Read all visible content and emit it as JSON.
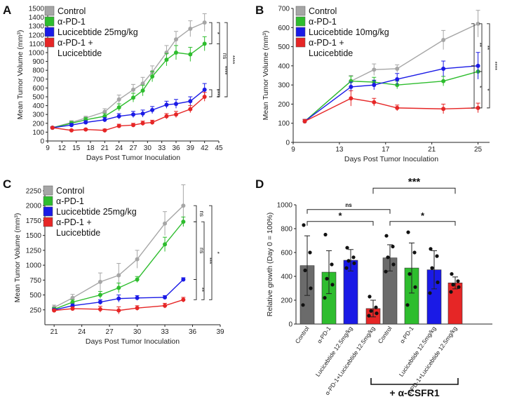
{
  "colors": {
    "control": "#a6a6a6",
    "apd1": "#2ebd2e",
    "luci": "#1a1ae6",
    "combo": "#e62626",
    "control_bar": "#6b6b6b",
    "dot": "#111111"
  },
  "chart_data": [
    {
      "panel": "A",
      "type": "line",
      "xlabel": "Days Post Tumor Inoculation",
      "ylabel": "Mean Tumor Volume (mm³)",
      "xlim": [
        9,
        45
      ],
      "ylim": [
        0,
        1500
      ],
      "xticks": [
        9,
        12,
        15,
        18,
        21,
        24,
        27,
        30,
        33,
        36,
        39,
        42,
        45
      ],
      "yticks": [
        0,
        100,
        200,
        300,
        400,
        500,
        600,
        700,
        800,
        900,
        1000,
        1100,
        1200,
        1300,
        1400,
        1500
      ],
      "legend": [
        "Control",
        "α-PD-1",
        "Lucicebtide 25mg/kg",
        "α-PD-1 +",
        "Lucicebtide"
      ],
      "series": [
        {
          "name": "Control",
          "color_key": "control",
          "x": [
            10,
            14,
            17,
            21,
            24,
            27,
            29,
            31,
            34,
            36,
            39,
            42
          ],
          "values": [
            150,
            210,
            260,
            330,
            470,
            580,
            650,
            780,
            1000,
            1150,
            1270,
            1340
          ],
          "err": [
            10,
            20,
            20,
            35,
            50,
            60,
            70,
            70,
            80,
            90,
            90,
            100
          ]
        },
        {
          "name": "α-PD-1",
          "color_key": "apd1",
          "x": [
            10,
            14,
            17,
            21,
            24,
            27,
            29,
            31,
            34,
            36,
            39,
            42
          ],
          "values": [
            150,
            200,
            240,
            280,
            380,
            490,
            570,
            730,
            920,
            1000,
            980,
            1100
          ],
          "err": [
            10,
            20,
            25,
            30,
            40,
            50,
            60,
            60,
            70,
            80,
            80,
            80
          ]
        },
        {
          "name": "Lucicebtide 25mg/kg",
          "color_key": "luci",
          "x": [
            10,
            14,
            17,
            21,
            24,
            27,
            29,
            31,
            34,
            36,
            39,
            42
          ],
          "values": [
            150,
            180,
            210,
            240,
            280,
            300,
            310,
            350,
            410,
            420,
            450,
            580
          ],
          "err": [
            10,
            20,
            20,
            25,
            30,
            35,
            40,
            40,
            40,
            50,
            50,
            70
          ]
        },
        {
          "name": "α-PD-1 + Lucicebtide",
          "color_key": "combo",
          "x": [
            10,
            14,
            17,
            21,
            24,
            27,
            29,
            31,
            34,
            36,
            39,
            42
          ],
          "values": [
            150,
            120,
            130,
            120,
            170,
            180,
            200,
            210,
            280,
            300,
            360,
            500
          ],
          "err": [
            5,
            10,
            10,
            15,
            20,
            20,
            25,
            25,
            30,
            35,
            40,
            50
          ]
        }
      ],
      "significance": [
        "*",
        "****",
        "****",
        "****",
        "ns"
      ]
    },
    {
      "panel": "B",
      "type": "line",
      "xlabel": "Days Post Tumor Inoculation",
      "ylabel": "Mean Tumor Volume (mm³)",
      "xlim": [
        9,
        26
      ],
      "ylim": [
        0,
        700
      ],
      "xticks": [
        9,
        13,
        17,
        21,
        25
      ],
      "yticks": [
        0,
        100,
        200,
        300,
        400,
        500,
        600,
        700
      ],
      "legend": [
        "Control",
        "α-PD-1",
        "Lucicebtide 10mg/kg",
        "α-PD-1 +",
        "Lucicebtide"
      ],
      "series": [
        {
          "name": "Control",
          "color_key": "control",
          "x": [
            10,
            14,
            16,
            18,
            22,
            25
          ],
          "values": [
            110,
            320,
            380,
            385,
            535,
            620
          ],
          "err": [
            10,
            30,
            30,
            20,
            50,
            70
          ]
        },
        {
          "name": "α-PD-1",
          "color_key": "apd1",
          "x": [
            10,
            14,
            16,
            18,
            22,
            25
          ],
          "values": [
            110,
            320,
            315,
            300,
            320,
            370
          ],
          "err": [
            10,
            25,
            25,
            20,
            25,
            30
          ]
        },
        {
          "name": "Lucicebtide 10mg/kg",
          "color_key": "luci",
          "x": [
            10,
            14,
            16,
            18,
            22,
            25
          ],
          "values": [
            110,
            290,
            300,
            330,
            385,
            400
          ],
          "err": [
            10,
            25,
            25,
            30,
            40,
            70
          ]
        },
        {
          "name": "α-PD-1 + Lucicebtide",
          "color_key": "combo",
          "x": [
            10,
            14,
            16,
            18,
            22,
            25
          ],
          "values": [
            110,
            230,
            210,
            180,
            175,
            180
          ],
          "err": [
            10,
            40,
            20,
            15,
            25,
            25
          ]
        }
      ],
      "significance": [
        "**",
        "**",
        "****",
        "*",
        "*"
      ]
    },
    {
      "panel": "C",
      "type": "line",
      "xlabel": "Days Post Tumor Inoculation",
      "ylabel": "Mean Tumor Volume (mm³)",
      "xlim": [
        20,
        39
      ],
      "ylim": [
        0,
        2250
      ],
      "xticks": [
        21,
        24,
        27,
        30,
        33,
        36,
        39
      ],
      "yticks": [
        250,
        500,
        750,
        1000,
        1250,
        1500,
        1750,
        2000,
        2250
      ],
      "legend": [
        "Control",
        "α-PD-1",
        "Lucicebtide 25mg/kg",
        "α-PD-1 +",
        "Lucicebtide"
      ],
      "series": [
        {
          "name": "Control",
          "color_key": "control",
          "x": [
            21,
            23,
            26,
            28,
            30,
            33,
            35
          ],
          "values": [
            290,
            450,
            720,
            830,
            1100,
            1700,
            2000
          ],
          "err": [
            40,
            60,
            150,
            200,
            150,
            200,
            350
          ]
        },
        {
          "name": "α-PD-1",
          "color_key": "apd1",
          "x": [
            21,
            23,
            26,
            28,
            30,
            33,
            35
          ],
          "values": [
            260,
            380,
            500,
            620,
            760,
            1350,
            1730
          ],
          "err": [
            30,
            40,
            60,
            80,
            50,
            120,
            80
          ]
        },
        {
          "name": "Lucicebtide 25mg/kg",
          "color_key": "luci",
          "x": [
            21,
            23,
            26,
            28,
            30,
            33,
            35
          ],
          "values": [
            250,
            320,
            380,
            440,
            450,
            460,
            760
          ],
          "err": [
            20,
            30,
            40,
            60,
            40,
            30,
            30
          ]
        },
        {
          "name": "α-PD-1 + Lucicebtide",
          "color_key": "combo",
          "x": [
            21,
            23,
            26,
            28,
            30,
            33,
            35
          ],
          "values": [
            240,
            270,
            260,
            240,
            280,
            320,
            420
          ],
          "err": [
            20,
            30,
            50,
            60,
            40,
            40,
            40
          ]
        }
      ],
      "significance": [
        "ns",
        "ns",
        "**",
        "***",
        "*"
      ]
    },
    {
      "panel": "D",
      "type": "bar",
      "ylabel": "Relative growth (Day 0 = 100%)",
      "ylim": [
        0,
        1000
      ],
      "yticks": [
        0,
        200,
        400,
        600,
        800,
        1000
      ],
      "categories": [
        "Control",
        "α-PD-1",
        "Lucicebtide 12.5mg/kg",
        "α-PD-1+Lucicebtide 12.5mg/kg",
        "Control",
        "α-PD-1",
        "Lucicebtide 12.5mg/kg",
        "α-PD-1+Lucicebtide 12.5mg/kg"
      ],
      "color_keys": [
        "control_bar",
        "apd1",
        "luci",
        "combo",
        "control_bar",
        "apd1",
        "luci",
        "combo"
      ],
      "values": [
        490,
        435,
        535,
        130,
        555,
        470,
        455,
        345
      ],
      "err": [
        250,
        180,
        90,
        70,
        110,
        210,
        160,
        50
      ],
      "points": [
        [
          830,
          600,
          450,
          300,
          160
        ],
        [
          750,
          500,
          380,
          330,
          220
        ],
        [
          640,
          560,
          530,
          510,
          470
        ],
        [
          230,
          140,
          110,
          90,
          70
        ],
        [
          740,
          650,
          560,
          500,
          440
        ],
        [
          770,
          600,
          420,
          310,
          160
        ],
        [
          630,
          570,
          470,
          350,
          260
        ],
        [
          420,
          360,
          330,
          310,
          270
        ]
      ],
      "group_label": "+ α-CSFR1",
      "comparisons": [
        "ns",
        "*",
        "***",
        "*"
      ]
    }
  ]
}
